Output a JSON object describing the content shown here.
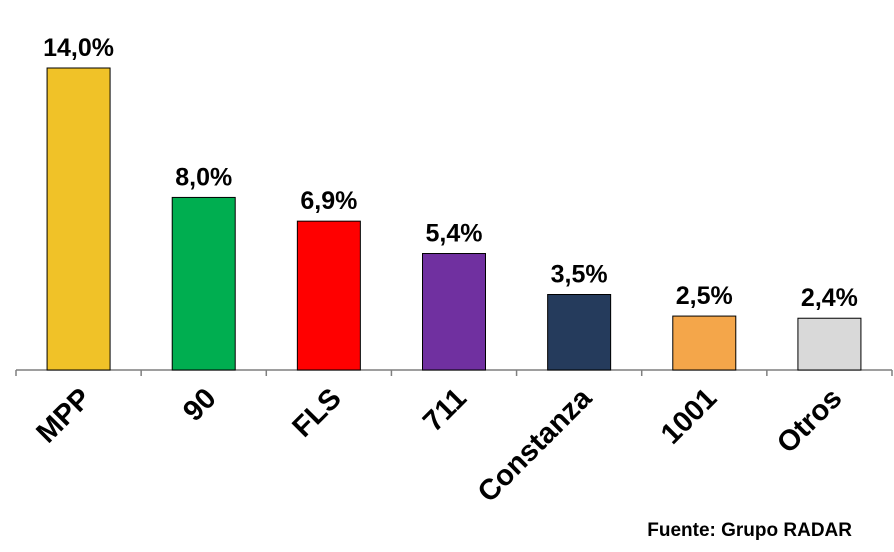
{
  "chart_data": {
    "type": "bar",
    "categories": [
      "MPP",
      "90",
      "FLS",
      "711",
      "Constanza",
      "1001",
      "Otros"
    ],
    "values": [
      14.0,
      8.0,
      6.9,
      5.4,
      3.5,
      2.5,
      2.4
    ],
    "value_labels": [
      "14,0%",
      "8,0%",
      "6,9%",
      "5,4%",
      "3,5%",
      "2,5%",
      "2,4%"
    ],
    "colors": [
      "#F0C228",
      "#00AE50",
      "#FF0000",
      "#7030A0",
      "#253B5C",
      "#F4A64A",
      "#D9D9D9"
    ],
    "ylim": [
      0,
      14.0
    ],
    "grid": false,
    "legend": "none"
  },
  "source": "Fuente: Grupo RADAR"
}
